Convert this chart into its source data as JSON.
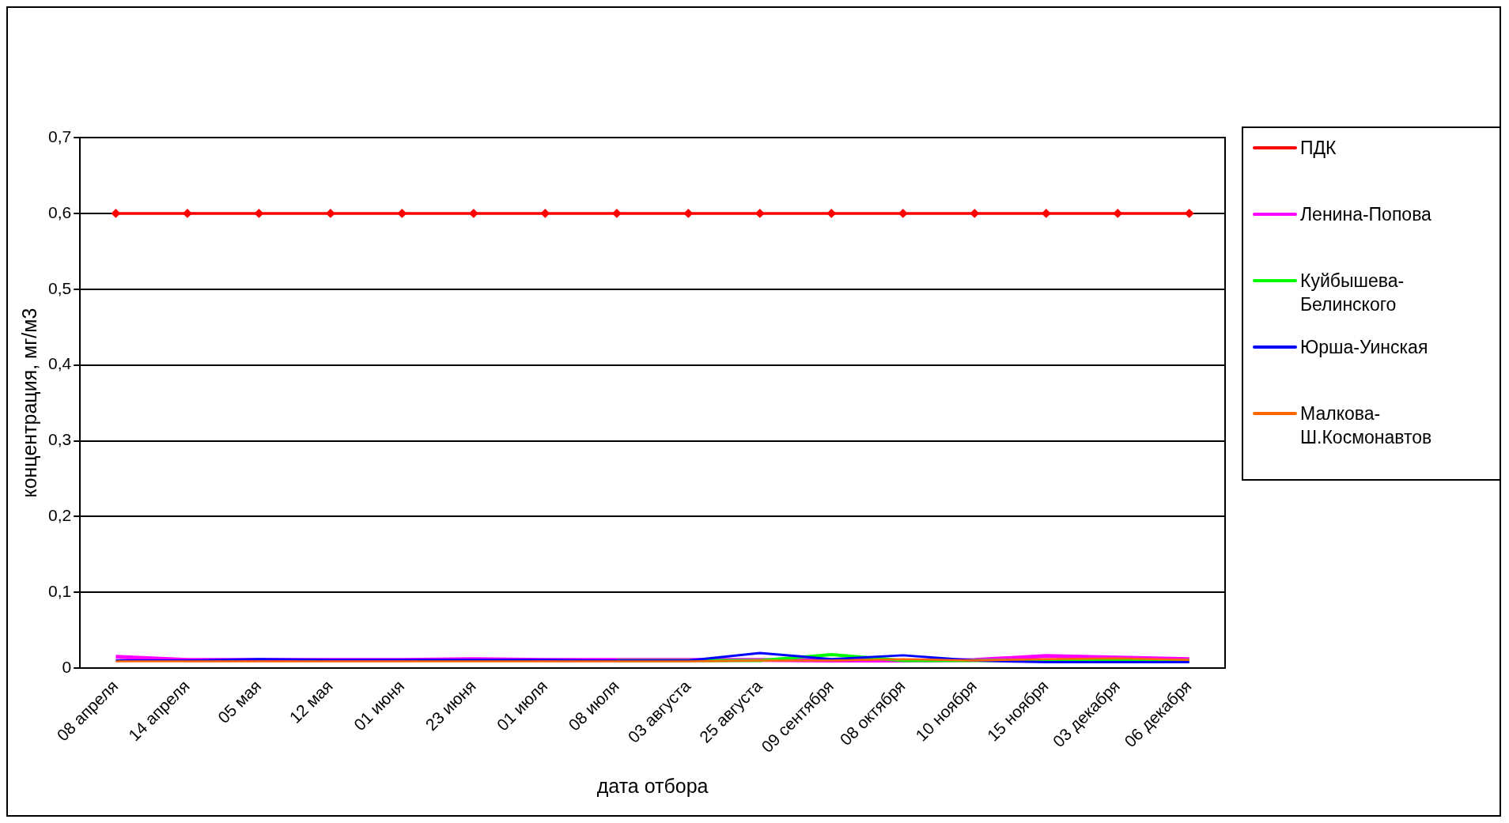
{
  "chart_data": {
    "type": "line",
    "xlabel": "дата отбора",
    "ylabel": "концентрация, мг/м3",
    "categories": [
      "08 апреля",
      "14 апреля",
      "05 мая",
      "12 мая",
      "01 июня",
      "23 июня",
      "01 июля",
      "08 июля",
      "03 августа",
      "25 августа",
      "09 сентября",
      "08 октября",
      "10 ноября",
      "15 ноября",
      "03 декабря",
      "06 декабря"
    ],
    "ylim": [
      0,
      0.7
    ],
    "yticks": [
      0,
      {
        "value": 0.1,
        "label": "0,1"
      },
      {
        "value": 0.2,
        "label": "0,2"
      },
      {
        "value": 0.3,
        "label": "0,3"
      },
      {
        "value": 0.4,
        "label": "0,4"
      },
      {
        "value": 0.5,
        "label": "0,5"
      },
      {
        "value": 0.6,
        "label": "0,6"
      },
      {
        "value": 0.7,
        "label": "0,7"
      }
    ],
    "grid": "y",
    "legend": "right",
    "series": [
      {
        "name": "ПДК",
        "color": "#ff0000",
        "marker": "diamond",
        "values": [
          0.6,
          0.6,
          0.6,
          0.6,
          0.6,
          0.6,
          0.6,
          0.6,
          0.6,
          0.6,
          0.6,
          0.6,
          0.6,
          0.6,
          0.6,
          0.6
        ]
      },
      {
        "name": "Ленина-Попова",
        "color": "#ff00ff",
        "marker": "none",
        "values": [
          0.015,
          0.011,
          0.011,
          0.011,
          0.011,
          0.012,
          0.011,
          0.011,
          0.011,
          0.011,
          0.01,
          0.01,
          0.011,
          0.016,
          0.014,
          0.012
        ]
      },
      {
        "name": "Куйбышева-Белинского",
        "color": "#00ff00",
        "marker": "none",
        "values": [
          null,
          null,
          null,
          null,
          null,
          null,
          null,
          0.01,
          0.01,
          0.01,
          0.018,
          0.01,
          0.01,
          0.01,
          0.01,
          0.01
        ]
      },
      {
        "name": "Юрша-Уинская",
        "color": "#0000ff",
        "marker": "none",
        "values": [
          0.01,
          0.01,
          0.012,
          0.011,
          0.011,
          0.011,
          0.011,
          0.01,
          0.01,
          0.02,
          0.012,
          0.017,
          0.01,
          0.008,
          0.008,
          0.008
        ]
      },
      {
        "name": "Малкова-Ш.Космонавтов",
        "color": "#ff6600",
        "marker": "none",
        "values": [
          0.009,
          0.009,
          0.009,
          0.009,
          0.009,
          0.009,
          0.009,
          0.009,
          0.009,
          0.01,
          0.01,
          0.012,
          0.01,
          0.012,
          0.013,
          0.011
        ]
      }
    ]
  }
}
